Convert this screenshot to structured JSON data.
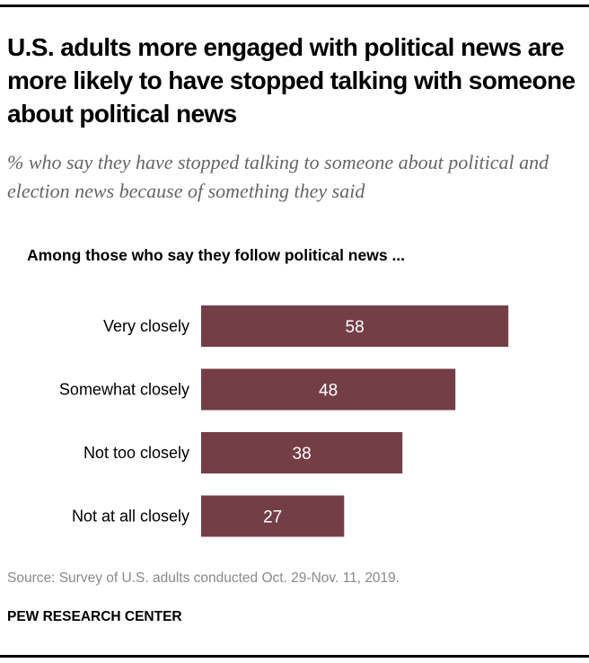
{
  "title": "U.S. adults more engaged with political news are more likely to have stopped talking with someone about political news",
  "subtitle": "% who say they have stopped talking to someone about political and election news because of something they said",
  "source": "Source: Survey of U.S. adults conducted Oct. 29-Nov. 11, 2019.",
  "organization": "PEW RESEARCH CENTER",
  "chart_data": {
    "type": "bar",
    "orientation": "horizontal",
    "group_label": "Among those who say they follow political news ...",
    "categories": [
      "Very closely",
      "Somewhat closely",
      "Not too closely",
      "Not at all closely"
    ],
    "values": [
      58,
      48,
      38,
      27
    ],
    "xlim": [
      0,
      100
    ],
    "grid": false,
    "bar_color": "#743E47",
    "label_color": "#ffffff"
  }
}
